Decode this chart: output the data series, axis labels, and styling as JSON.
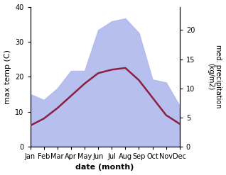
{
  "months": [
    "Jan",
    "Feb",
    "Mar",
    "Apr",
    "May",
    "Jun",
    "Jul",
    "Aug",
    "Sep",
    "Oct",
    "Nov",
    "Dec"
  ],
  "temperature": [
    6.0,
    8.0,
    11.0,
    14.5,
    18.0,
    21.0,
    22.0,
    22.5,
    19.0,
    14.0,
    9.0,
    6.5
  ],
  "precipitation": [
    9.0,
    8.0,
    10.0,
    13.0,
    13.0,
    20.0,
    21.5,
    22.0,
    19.5,
    11.5,
    11.0,
    7.0
  ],
  "ylabel_left": "max temp (C)",
  "ylabel_right": "med. precipitation\n(kg/m2)",
  "xlabel": "date (month)",
  "ylim_left": [
    0,
    40
  ],
  "ylim_right": [
    0,
    24
  ],
  "yticks_left": [
    0,
    10,
    20,
    30,
    40
  ],
  "yticks_right": [
    0,
    5,
    10,
    15,
    20
  ],
  "fill_color": "#b0b8ee",
  "line_color": "#8b2040",
  "bg_color": "#ffffff",
  "label_fontsize": 8,
  "tick_fontsize": 7,
  "linewidth": 1.8
}
